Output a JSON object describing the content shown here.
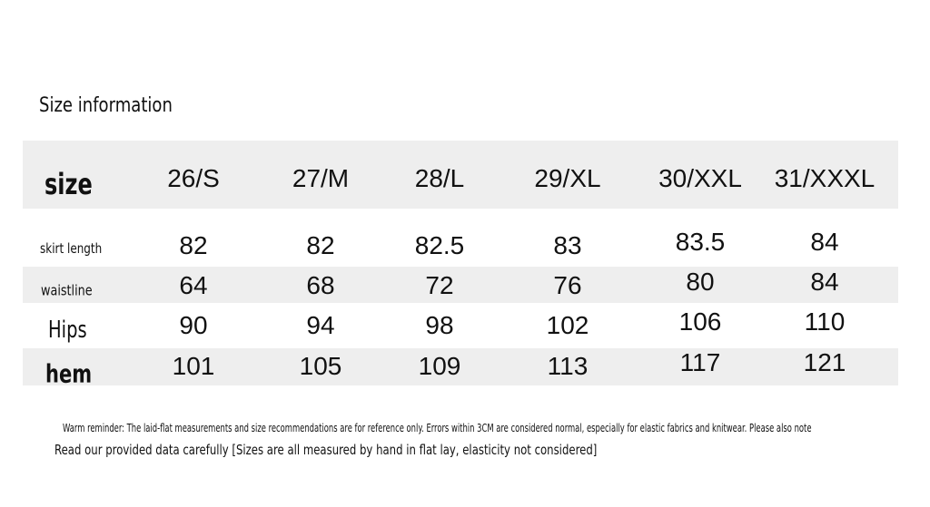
{
  "title": "Size information",
  "table": {
    "header": [
      "size",
      "26/S",
      "27/M",
      "28/L",
      "29/XL",
      "30/XXL",
      "31/XXXL"
    ],
    "rows": [
      [
        "skirt length",
        82,
        82,
        82.5,
        83,
        83.5,
        84
      ],
      [
        "waistline",
        64,
        68,
        72,
        76,
        80,
        84
      ],
      [
        "Hips",
        90,
        94,
        98,
        102,
        106,
        110
      ],
      [
        "hem",
        101,
        105,
        109,
        113,
        117,
        121
      ]
    ]
  },
  "notes": [
    "Warm reminder: The laid-flat measurements and size recommendations are for reference only. Errors within 3CM are considered normal, especially for elastic fabrics and knitwear. Please also note",
    "Read our provided data carefully [Sizes are all measured by hand in flat lay, elasticity not considered]"
  ]
}
